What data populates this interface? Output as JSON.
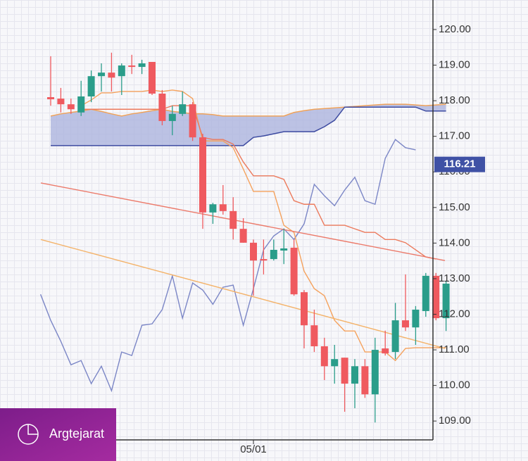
{
  "chart_data": {
    "type": "candlestick",
    "categories": [
      null,
      null,
      null,
      null,
      null,
      null,
      null,
      null,
      null,
      null,
      null,
      null,
      null,
      null,
      null,
      null,
      null,
      null,
      null,
      null,
      "05/01",
      null,
      null,
      null,
      null,
      null,
      null,
      null,
      null,
      null,
      null,
      null,
      null,
      null,
      null,
      null,
      null,
      null,
      null,
      null
    ],
    "open": [
      118.1,
      118.06,
      117.9,
      117.67,
      118.12,
      118.69,
      118.79,
      118.69,
      118.99,
      118.95,
      119.09,
      118.2,
      117.43,
      117.63,
      117.9,
      116.97,
      114.86,
      115.09,
      114.9,
      114.4,
      114.01,
      113.55,
      113.55,
      113.79,
      113.87,
      112.62,
      111.69,
      111.1,
      110.54,
      110.78,
      110.05,
      110.54,
      109.75,
      111.04,
      110.94,
      111.83,
      111.63,
      112.09,
      113.08,
      111.89
    ],
    "high": [
      119.25,
      118.36,
      118.06,
      118.56,
      118.85,
      119.05,
      119.35,
      119.05,
      119.29,
      119.15,
      119.09,
      118.3,
      117.86,
      118.26,
      117.96,
      117.07,
      115.13,
      115.63,
      115.29,
      114.7,
      114.1,
      114.1,
      114.1,
      114.4,
      114.1,
      112.68,
      112.13,
      111.34,
      111.14,
      110.78,
      110.74,
      110.74,
      111.34,
      111.54,
      112.32,
      113.12,
      112.23,
      113.16,
      113.16,
      112.92
    ],
    "low": [
      117.86,
      117.67,
      117.63,
      117.57,
      117.96,
      118.26,
      118.26,
      118.16,
      118.75,
      118.75,
      118.16,
      117.31,
      117.03,
      117.57,
      116.87,
      114.4,
      114.54,
      114.8,
      114.1,
      114.01,
      112.52,
      113.12,
      113.51,
      113.41,
      112.52,
      111.04,
      110.94,
      110.15,
      110.05,
      109.26,
      109.36,
      109.65,
      108.96,
      110.84,
      110.74,
      111.53,
      111.14,
      111.93,
      111.83,
      111.53
    ],
    "close": [
      118.04,
      117.9,
      117.76,
      118.12,
      118.69,
      118.79,
      118.65,
      118.99,
      118.95,
      119.05,
      118.2,
      117.43,
      117.63,
      117.9,
      116.97,
      114.86,
      115.09,
      114.9,
      114.4,
      114.01,
      113.51,
      113.51,
      113.81,
      113.85,
      112.56,
      111.69,
      111.1,
      110.54,
      110.74,
      110.05,
      110.54,
      109.75,
      111.0,
      110.9,
      111.83,
      111.63,
      112.13,
      113.08,
      111.89,
      112.86
    ],
    "up_color": "#2a9d8a",
    "down_color": "#ef5a5f",
    "ylim": [
      108.47,
      120.83
    ],
    "yticks": [
      {
        "value": 109,
        "label": "109.00"
      },
      {
        "value": 110,
        "label": "110.00"
      },
      {
        "value": 111,
        "label": "111.00"
      },
      {
        "value": 112,
        "label": "112.00"
      },
      {
        "value": 113,
        "label": "113.00"
      },
      {
        "value": 114,
        "label": "114.00"
      },
      {
        "value": 115,
        "label": "115.00"
      },
      {
        "value": 116,
        "label": "116.00"
      },
      {
        "value": 117,
        "label": "117.00"
      },
      {
        "value": 118,
        "label": "118.00"
      },
      {
        "value": 119,
        "label": "119.00"
      },
      {
        "value": 120,
        "label": "120.00"
      }
    ],
    "last_price": 116.21,
    "last_price_color": "#3f51a5",
    "cloud": {
      "fill": "#a8b0dc",
      "x": [
        0,
        1,
        2,
        3,
        4,
        5,
        6,
        7,
        8,
        9,
        10,
        11,
        12,
        13,
        14,
        15,
        16,
        17,
        18,
        19,
        20,
        21,
        22,
        23,
        24,
        25,
        26,
        27,
        28,
        29,
        30,
        31,
        32,
        33,
        34,
        35,
        36,
        37,
        38,
        39
      ],
      "lead_a": {
        "color": "#f0a35a",
        "values": [
          117.57,
          117.63,
          117.67,
          117.71,
          117.76,
          117.7,
          117.63,
          117.57,
          117.63,
          117.67,
          117.72,
          117.76,
          117.7,
          117.67,
          117.63,
          117.63,
          117.61,
          117.57,
          117.57,
          117.57,
          117.57,
          117.57,
          117.57,
          117.57,
          117.67,
          117.72,
          117.76,
          117.78,
          117.8,
          117.82,
          117.84,
          117.86,
          117.88,
          117.9,
          117.9,
          117.9,
          117.88,
          117.86,
          117.88,
          117.9
        ]
      },
      "lead_b": {
        "color": "#3c4aa0",
        "values": [
          116.74,
          116.74,
          116.74,
          116.74,
          116.74,
          116.74,
          116.74,
          116.74,
          116.74,
          116.74,
          116.74,
          116.74,
          116.74,
          116.74,
          116.74,
          116.74,
          116.74,
          116.74,
          116.74,
          116.74,
          116.97,
          117.01,
          117.07,
          117.13,
          117.13,
          117.13,
          117.13,
          117.27,
          117.45,
          117.82,
          117.82,
          117.82,
          117.82,
          117.82,
          117.82,
          117.82,
          117.82,
          117.71,
          117.71,
          117.71
        ]
      }
    },
    "lines": [
      {
        "color": "#7b86c6",
        "x": [
          -1,
          0,
          1,
          2,
          3,
          4,
          5,
          6,
          7,
          8,
          9,
          10,
          11,
          12,
          13,
          14,
          15,
          16,
          17,
          18,
          19,
          20,
          21,
          22,
          23,
          24,
          25,
          26,
          27,
          28,
          29,
          30,
          31,
          32,
          33,
          34,
          35,
          36
        ],
        "values": [
          112.56,
          111.83,
          111.24,
          110.58,
          110.7,
          110.05,
          110.54,
          109.85,
          110.94,
          110.84,
          111.69,
          111.73,
          112.13,
          113.08,
          111.89,
          112.88,
          112.68,
          112.28,
          112.76,
          112.82,
          111.69,
          112.72,
          113.81,
          114.2,
          114.4,
          114.1,
          114.54,
          115.65,
          115.33,
          115.05,
          115.49,
          115.85,
          115.19,
          115.09,
          116.38,
          116.91,
          116.68,
          116.62
        ]
      },
      {
        "color": "#f5a25d",
        "x": [
          0,
          1,
          2,
          3,
          4,
          5,
          6,
          7,
          8,
          9,
          10,
          11,
          12,
          13,
          14,
          15,
          16,
          17,
          18,
          19,
          20,
          21,
          22,
          23,
          24,
          25,
          26,
          27,
          28,
          29,
          30,
          31,
          32,
          33,
          34,
          35,
          36,
          37,
          38,
          39
        ],
        "values": [
          null,
          null,
          null,
          117.86,
          118.02,
          118.22,
          118.22,
          118.26,
          118.26,
          118.26,
          118.3,
          118.26,
          118.3,
          118.26,
          118.06,
          116.87,
          116.87,
          116.87,
          116.68,
          116.08,
          115.45,
          115.45,
          115.45,
          114.5,
          114.3,
          113.21,
          112.72,
          112.52,
          111.83,
          111.53,
          111.53,
          110.94,
          110.94,
          110.94,
          110.7,
          111.04,
          111.06,
          111.06,
          111.06,
          111.06
        ]
      },
      {
        "color": "#ec7a5c",
        "x": [
          0,
          1,
          2,
          3,
          4,
          5,
          6,
          7,
          8,
          9,
          10,
          11,
          12,
          13,
          14,
          15,
          16,
          17,
          18,
          19,
          20,
          21,
          22,
          23,
          24,
          25,
          26,
          27,
          28,
          29,
          30,
          31,
          32,
          33,
          34,
          35,
          36,
          37,
          38,
          39
        ],
        "values": [
          null,
          null,
          null,
          117.76,
          117.76,
          117.76,
          117.76,
          117.76,
          117.76,
          117.76,
          117.76,
          117.76,
          117.86,
          117.86,
          117.86,
          116.97,
          116.91,
          116.91,
          116.78,
          116.28,
          115.89,
          115.89,
          115.89,
          115.79,
          115.19,
          115.09,
          115.09,
          114.5,
          114.5,
          114.5,
          114.4,
          114.3,
          114.3,
          114.1,
          114.1,
          114.01,
          113.81,
          113.61,
          113.55,
          null
        ]
      },
      {
        "color": "#ec7a6a",
        "x": [
          -0.97,
          38.89
        ],
        "values": [
          115.69,
          113.51
        ]
      },
      {
        "color": "#f4b36a",
        "x": [
          -0.97,
          38.89
        ],
        "values": [
          114.1,
          111.04
        ]
      }
    ]
  },
  "watermark": "Argtejarat"
}
